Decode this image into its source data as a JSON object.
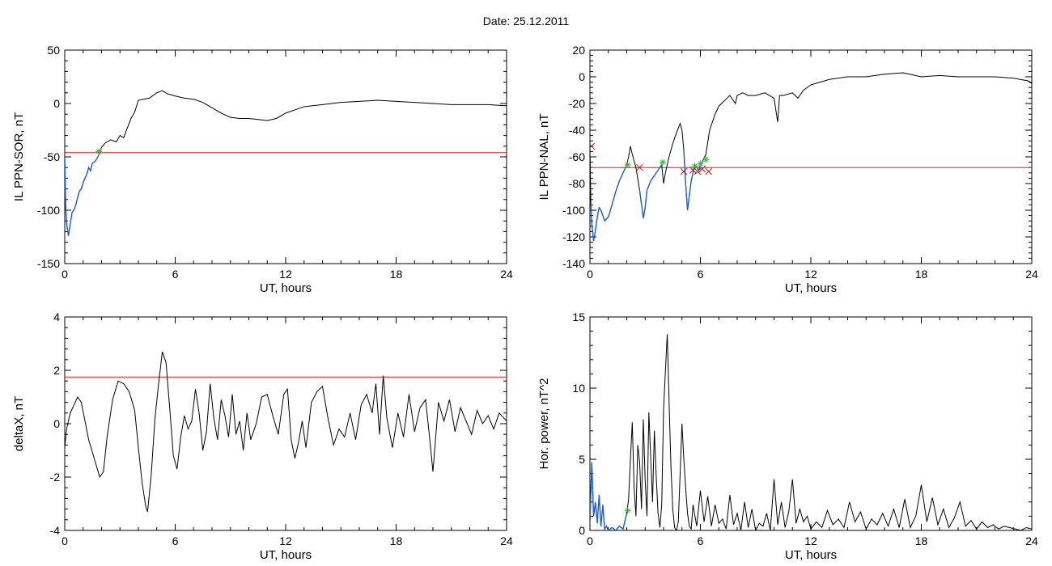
{
  "page": {
    "title": "Date:  25.12.2011"
  },
  "colors": {
    "trace": "#000000",
    "highlight": "#1f5fd0",
    "threshold": "#e31a1c",
    "marker_x": "#c01818",
    "marker_star": "#2fbf2f"
  },
  "chart_data": [
    {
      "id": "sor",
      "type": "line",
      "xlabel": "UT, hours",
      "ylabel": "IL PPN-SOR, nT",
      "xlim": [
        0,
        24
      ],
      "ylim": [
        -150,
        50
      ],
      "xticks": [
        0,
        6,
        12,
        18,
        24
      ],
      "yticks": [
        -150,
        -100,
        -50,
        0,
        50
      ],
      "threshold": -46,
      "series": [
        {
          "x": [
            0,
            0.05,
            0.1,
            0.2,
            0.3,
            0.4,
            0.5,
            0.6,
            0.7,
            0.8,
            0.9,
            1.0,
            1.1,
            1.2,
            1.3,
            1.4,
            1.5,
            1.6,
            1.7,
            1.8,
            1.9,
            2.0,
            2.2,
            2.5,
            2.8,
            3.0,
            3.2,
            3.4,
            3.6,
            3.8,
            4.0,
            4.3,
            4.6,
            5.0,
            5.3,
            5.6,
            6.0,
            6.5,
            7.0,
            7.5,
            8.0,
            8.5,
            9.0,
            9.5,
            10.0,
            10.5,
            11.0,
            11.5,
            12.0,
            12.5,
            13.0,
            14.0,
            15.0,
            16.0,
            17.0,
            18.0,
            19.0,
            20.0,
            21.0,
            22.0,
            23.0,
            23.8,
            24.0
          ],
          "values": [
            -50,
            -95,
            -112,
            -124,
            -113,
            -102,
            -100,
            -95,
            -88,
            -82,
            -80,
            -74,
            -70,
            -66,
            -60,
            -63,
            -56,
            -55,
            -53,
            -50,
            -46,
            -41,
            -37,
            -34,
            -36,
            -30,
            -32,
            -23,
            -14,
            -8,
            3,
            4,
            5,
            10,
            12,
            9,
            7,
            5,
            4,
            1,
            -4,
            -9,
            -13,
            -14,
            -14,
            -15,
            -16,
            -14,
            -9,
            -6,
            -3,
            -1,
            1,
            2,
            3,
            2,
            1,
            0,
            -1,
            -1,
            -1,
            -2,
            -2
          ]
        }
      ],
      "highlight_until_x": 1.9,
      "markers": [
        {
          "kind": "star",
          "x": 1.85,
          "y": -45
        }
      ]
    },
    {
      "id": "nal",
      "type": "line",
      "xlabel": "UT, hours",
      "ylabel": "IL PPN-NAL, nT",
      "xlim": [
        0,
        24
      ],
      "ylim": [
        -140,
        20
      ],
      "xticks": [
        0,
        6,
        12,
        18,
        24
      ],
      "yticks": [
        -140,
        -120,
        -100,
        -80,
        -60,
        -40,
        -20,
        0,
        20
      ],
      "threshold": -68,
      "series": [
        {
          "x": [
            0,
            0.05,
            0.1,
            0.2,
            0.3,
            0.4,
            0.5,
            0.6,
            0.8,
            1.0,
            1.2,
            1.4,
            1.6,
            1.8,
            2.0,
            2.1,
            2.2,
            2.3,
            2.5,
            2.7,
            2.9,
            3.0,
            3.1,
            3.3,
            3.5,
            3.7,
            3.9,
            4.0,
            4.1,
            4.3,
            4.5,
            4.7,
            4.9,
            5.0,
            5.1,
            5.2,
            5.3,
            5.5,
            5.7,
            5.9,
            6.1,
            6.3,
            6.5,
            6.8,
            7.0,
            7.3,
            7.6,
            7.9,
            8.0,
            8.3,
            8.6,
            9.0,
            9.5,
            10.0,
            10.2,
            10.3,
            10.5,
            11.0,
            11.3,
            11.6,
            12.0,
            12.5,
            13.0,
            14.0,
            15.0,
            16.0,
            17.0,
            18.0,
            19.0,
            20.0,
            21.0,
            22.0,
            23.0,
            23.8,
            24.0
          ],
          "values": [
            -52,
            -95,
            -110,
            -123,
            -115,
            -105,
            -98,
            -100,
            -108,
            -105,
            -96,
            -86,
            -78,
            -72,
            -66,
            -60,
            -52,
            -58,
            -68,
            -85,
            -106,
            -98,
            -85,
            -78,
            -74,
            -70,
            -66,
            -80,
            -72,
            -60,
            -50,
            -42,
            -35,
            -40,
            -55,
            -80,
            -100,
            -78,
            -66,
            -70,
            -64,
            -58,
            -40,
            -28,
            -22,
            -18,
            -14,
            -20,
            -14,
            -12,
            -14,
            -14,
            -12,
            -16,
            -34,
            -14,
            -14,
            -12,
            -16,
            -10,
            -6,
            -4,
            -2,
            0,
            0,
            2,
            3,
            0,
            1,
            0,
            0,
            0,
            -1,
            -3,
            -5
          ]
        }
      ],
      "highlight_segments": [
        [
          0.05,
          2.0
        ],
        [
          2.7,
          3.9
        ],
        [
          5.1,
          6.2
        ]
      ],
      "markers": [
        {
          "kind": "x",
          "x": 0.08,
          "y": -52
        },
        {
          "kind": "star",
          "x": 2.05,
          "y": -66
        },
        {
          "kind": "x",
          "x": 2.7,
          "y": -68
        },
        {
          "kind": "star",
          "x": 3.95,
          "y": -64
        },
        {
          "kind": "x",
          "x": 5.1,
          "y": -71
        },
        {
          "kind": "x",
          "x": 5.6,
          "y": -70
        },
        {
          "kind": "star",
          "x": 5.7,
          "y": -67
        },
        {
          "kind": "x",
          "x": 5.85,
          "y": -71
        },
        {
          "kind": "star",
          "x": 6.0,
          "y": -65
        },
        {
          "kind": "x",
          "x": 6.1,
          "y": -69
        },
        {
          "kind": "star",
          "x": 6.3,
          "y": -62
        },
        {
          "kind": "x",
          "x": 6.45,
          "y": -71
        }
      ]
    },
    {
      "id": "deltax",
      "type": "line",
      "xlabel": "UT, hours",
      "ylabel": "deltaX, nT",
      "xlim": [
        0,
        24
      ],
      "ylim": [
        -4,
        4
      ],
      "xticks": [
        0,
        6,
        12,
        18,
        24
      ],
      "yticks": [
        -4,
        -2,
        0,
        2,
        4
      ],
      "threshold": 1.75,
      "series": [
        {
          "x": [
            0,
            0.1,
            0.3,
            0.5,
            0.7,
            0.9,
            1.1,
            1.3,
            1.6,
            1.9,
            2.1,
            2.3,
            2.6,
            2.9,
            3.2,
            3.5,
            3.8,
            4.0,
            4.2,
            4.4,
            4.5,
            4.7,
            4.9,
            5.1,
            5.3,
            5.5,
            5.7,
            5.9,
            6.1,
            6.3,
            6.5,
            6.7,
            6.9,
            7.1,
            7.3,
            7.5,
            7.7,
            7.9,
            8.1,
            8.3,
            8.5,
            8.7,
            8.9,
            9.1,
            9.3,
            9.5,
            9.7,
            9.9,
            10.1,
            10.4,
            10.7,
            11.0,
            11.3,
            11.6,
            11.9,
            12.1,
            12.3,
            12.5,
            12.7,
            12.9,
            13.1,
            13.4,
            13.7,
            14.0,
            14.3,
            14.6,
            14.9,
            15.2,
            15.5,
            15.8,
            16.1,
            16.4,
            16.7,
            16.9,
            17.1,
            17.3,
            17.5,
            17.8,
            18.1,
            18.4,
            18.7,
            19.0,
            19.3,
            19.6,
            19.8,
            20.0,
            20.3,
            20.6,
            20.9,
            21.2,
            21.5,
            21.8,
            22.1,
            22.4,
            22.7,
            23.0,
            23.3,
            23.6,
            24.0
          ],
          "values": [
            -0.9,
            -0.2,
            0.4,
            0.7,
            1.0,
            0.8,
            0.1,
            -0.6,
            -1.3,
            -2.0,
            -1.8,
            -0.5,
            0.9,
            1.6,
            1.5,
            1.2,
            0.5,
            -0.9,
            -2.2,
            -3.1,
            -3.3,
            -1.9,
            0.2,
            1.5,
            2.7,
            2.3,
            0.6,
            -1.2,
            -1.7,
            -0.5,
            0.3,
            -0.2,
            0.1,
            1.3,
            0.4,
            -1.0,
            -0.3,
            1.5,
            0.2,
            -0.6,
            0.9,
            0.3,
            -0.5,
            1.1,
            -0.4,
            0.1,
            -1.0,
            0.4,
            -0.6,
            0.0,
            1.0,
            1.1,
            0.3,
            -0.4,
            1.1,
            1.3,
            -0.6,
            -1.3,
            -0.7,
            0.1,
            -0.9,
            0.8,
            1.2,
            1.4,
            0.2,
            -0.8,
            -0.2,
            -0.5,
            0.4,
            -0.6,
            0.7,
            1.1,
            0.4,
            1.5,
            -0.4,
            1.8,
            0.2,
            -0.9,
            0.4,
            -0.5,
            1.1,
            -0.3,
            0.6,
            0.9,
            -0.4,
            -1.8,
            0.8,
            0.1,
            0.9,
            -0.3,
            0.6,
            0.1,
            -0.4,
            0.5,
            0.0,
            0.3,
            -0.2,
            0.4,
            0.1
          ]
        }
      ],
      "markers": []
    },
    {
      "id": "power",
      "type": "line",
      "xlabel": "UT, hours",
      "ylabel": "Hor. power, nT^2",
      "xlim": [
        0,
        24
      ],
      "ylim": [
        0,
        15
      ],
      "xticks": [
        0,
        6,
        12,
        18,
        24
      ],
      "yticks": [
        0,
        5,
        10,
        15
      ],
      "threshold": null,
      "series": [
        {
          "x": [
            0,
            0.1,
            0.2,
            0.3,
            0.4,
            0.5,
            0.6,
            0.7,
            0.8,
            0.9,
            1.0,
            1.2,
            1.4,
            1.6,
            1.8,
            2.0,
            2.1,
            2.2,
            2.3,
            2.4,
            2.5,
            2.6,
            2.7,
            2.8,
            2.9,
            3.0,
            3.1,
            3.2,
            3.3,
            3.4,
            3.5,
            3.6,
            3.7,
            3.8,
            3.9,
            4.0,
            4.1,
            4.2,
            4.3,
            4.4,
            4.5,
            4.6,
            4.7,
            4.8,
            4.9,
            5.0,
            5.1,
            5.2,
            5.3,
            5.4,
            5.5,
            5.6,
            5.8,
            6.0,
            6.2,
            6.4,
            6.6,
            6.8,
            7.0,
            7.2,
            7.4,
            7.6,
            7.8,
            8.0,
            8.2,
            8.4,
            8.6,
            8.8,
            9.0,
            9.2,
            9.4,
            9.6,
            9.8,
            10.0,
            10.2,
            10.4,
            10.6,
            10.8,
            11.0,
            11.2,
            11.4,
            11.6,
            11.8,
            12.0,
            12.3,
            12.6,
            12.9,
            13.2,
            13.5,
            13.8,
            14.1,
            14.4,
            14.7,
            15.0,
            15.3,
            15.6,
            15.9,
            16.2,
            16.5,
            16.8,
            17.1,
            17.4,
            17.7,
            18.0,
            18.3,
            18.6,
            18.9,
            19.2,
            19.5,
            19.8,
            20.1,
            20.4,
            20.7,
            21.0,
            21.3,
            21.6,
            21.9,
            22.2,
            22.5,
            22.8,
            23.1,
            23.4,
            23.7,
            24.0
          ],
          "values": [
            0.5,
            4.8,
            1.0,
            2.0,
            0.5,
            2.5,
            0.3,
            1.8,
            0.1,
            0.3,
            0.0,
            0.2,
            0.0,
            0.3,
            0.1,
            1.2,
            2.2,
            5.0,
            7.6,
            3.0,
            1.0,
            6.0,
            4.8,
            1.5,
            7.8,
            3.5,
            1.0,
            8.3,
            5.2,
            2.0,
            7.0,
            3.8,
            1.2,
            0.2,
            1.8,
            8.5,
            11.2,
            13.8,
            9.0,
            4.5,
            1.5,
            0.2,
            0.0,
            0.6,
            4.0,
            7.5,
            5.0,
            3.0,
            1.2,
            0.3,
            0.1,
            1.8,
            0.3,
            2.8,
            0.6,
            2.4,
            0.3,
            1.8,
            0.5,
            0.8,
            0.1,
            2.5,
            0.4,
            1.2,
            0.0,
            2.0,
            0.2,
            1.5,
            0.0,
            0.5,
            0.3,
            1.2,
            0.0,
            3.6,
            0.4,
            2.0,
            0.2,
            1.3,
            3.6,
            0.5,
            1.5,
            0.6,
            1.0,
            0.1,
            0.6,
            0.2,
            1.4,
            0.4,
            0.8,
            0.2,
            2.0,
            0.6,
            1.3,
            0.1,
            0.8,
            0.4,
            1.2,
            0.3,
            1.5,
            0.2,
            2.2,
            0.2,
            1.0,
            3.2,
            0.6,
            2.3,
            0.4,
            1.5,
            0.2,
            0.9,
            2.0,
            0.3,
            0.7,
            0.1,
            0.6,
            0.2,
            0.4,
            0.1,
            0.3,
            0.2,
            0.1,
            0.0,
            0.2,
            0.1
          ],
          "highlight_until_x": 2.05
        }
      ],
      "highlight_until_x": 2.05,
      "markers": [
        {
          "kind": "star",
          "x": 2.05,
          "y": 1.4
        }
      ]
    }
  ]
}
